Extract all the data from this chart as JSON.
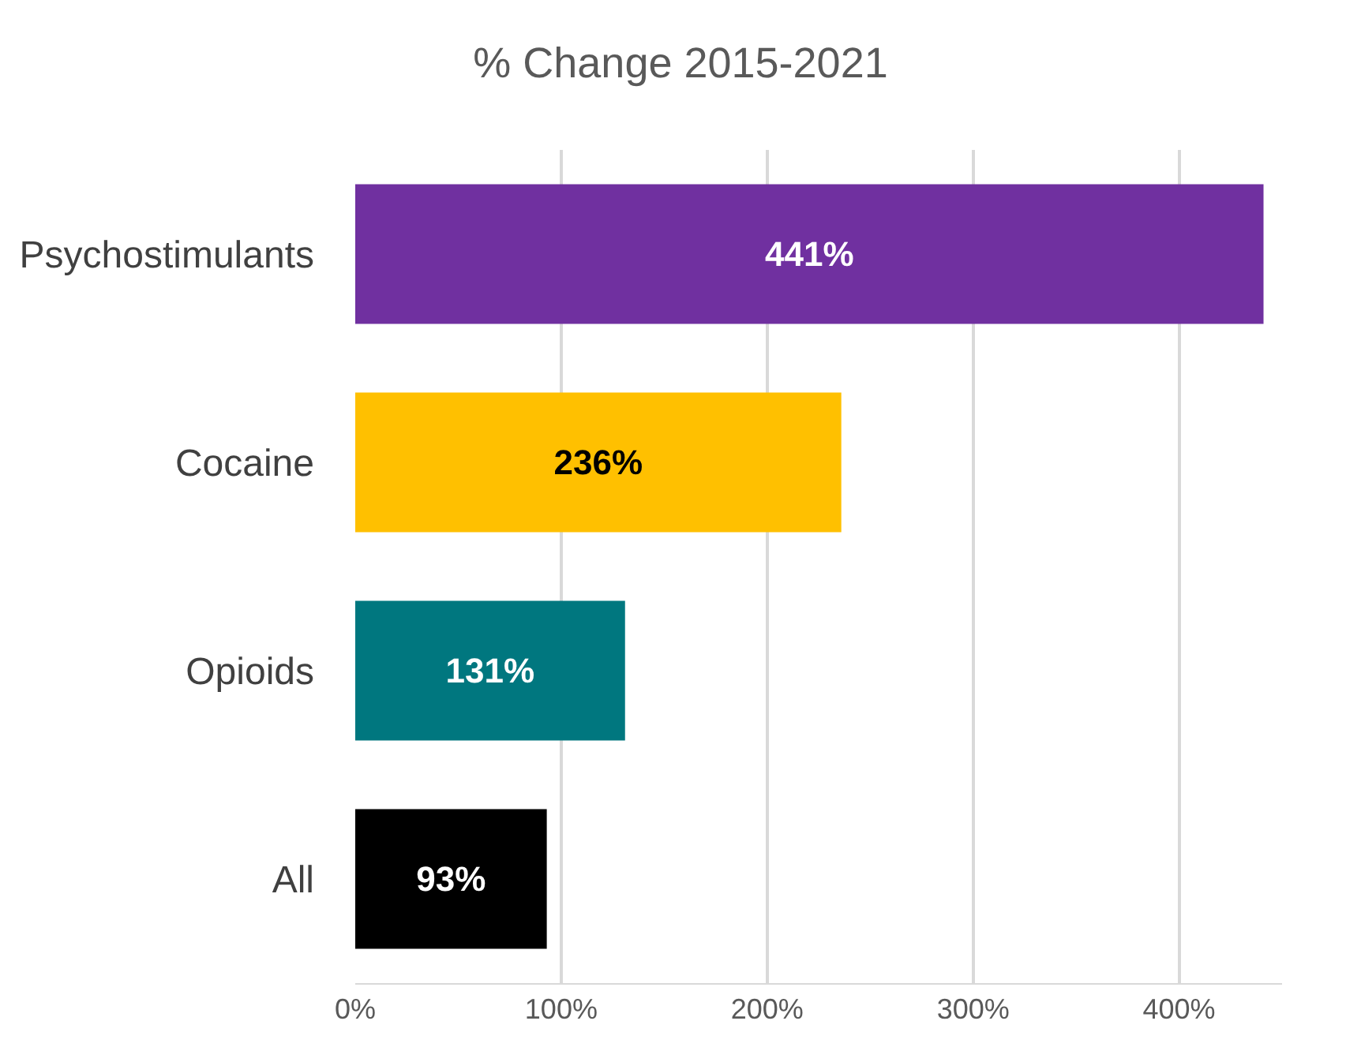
{
  "chart_data": {
    "type": "bar",
    "orientation": "horizontal",
    "title": "% Change 2015-2021",
    "categories": [
      "Psychostimulants",
      "Cocaine",
      "Opioids",
      "All"
    ],
    "values": [
      441,
      236,
      131,
      93
    ],
    "colors": [
      "#7030a0",
      "#ffc000",
      "#00777f",
      "#000000"
    ],
    "value_labels": [
      "441%",
      "236%",
      "131%",
      "93%"
    ],
    "xlim": [
      0,
      450
    ],
    "xticks": [
      {
        "value": 0,
        "label": "0%"
      },
      {
        "value": 100,
        "label": "100%"
      },
      {
        "value": 200,
        "label": "200%"
      },
      {
        "value": 300,
        "label": "300%"
      },
      {
        "value": 400,
        "label": "400%"
      }
    ],
    "grid": "x",
    "legend": false
  }
}
